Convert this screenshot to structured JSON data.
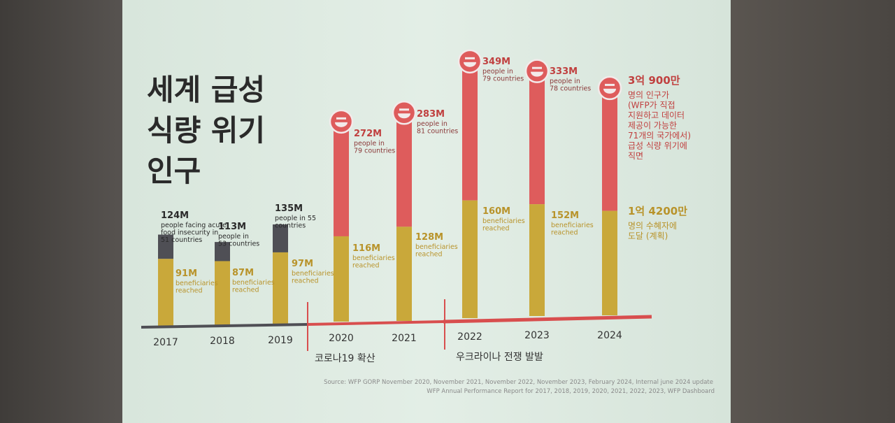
{
  "title_lines": [
    "세계 급성",
    "식량 위기",
    "인구"
  ],
  "colors": {
    "gray": "#4f4f55",
    "gold": "#c9a83a",
    "red": "#de5c5c",
    "line_gray": "#4f4f55",
    "line_red": "#d84e4e"
  },
  "chart_data": {
    "type": "bar",
    "categories": [
      "2017",
      "2018",
      "2019",
      "2020",
      "2021",
      "2022",
      "2023",
      "2024"
    ],
    "series": [
      {
        "name": "people facing acute food insecurity",
        "values": [
          124,
          113,
          135,
          272,
          283,
          349,
          333,
          309
        ]
      },
      {
        "name": "beneficiaries reached",
        "values": [
          91,
          87,
          97,
          116,
          128,
          160,
          152,
          142
        ]
      }
    ],
    "annotations": [
      {
        "year": "2017",
        "top_value": "124M",
        "top_text": [
          "people facing acute",
          "food insecurity in",
          "51 countries"
        ],
        "low_value": "91M",
        "low_text": [
          "beneficiaries",
          "reached"
        ]
      },
      {
        "year": "2018",
        "top_value": "113M",
        "top_text": [
          "people in",
          "53 countries"
        ],
        "low_value": "87M",
        "low_text": [
          "beneficiaries",
          "reached"
        ]
      },
      {
        "year": "2019",
        "top_value": "135M",
        "top_text": [
          "people in 55",
          "countries"
        ],
        "low_value": "97M",
        "low_text": [
          "beneficiaries",
          "reached"
        ]
      },
      {
        "year": "2020",
        "top_value": "272M",
        "top_text": [
          "people in",
          "79 countries"
        ],
        "low_value": "116M",
        "low_text": [
          "beneficiaries",
          "reached"
        ]
      },
      {
        "year": "2021",
        "top_value": "283M",
        "top_text": [
          "people in",
          "81 countries"
        ],
        "low_value": "128M",
        "low_text": [
          "beneficiaries",
          "reached"
        ]
      },
      {
        "year": "2022",
        "top_value": "349M",
        "top_text": [
          "people in",
          "79 countries"
        ],
        "low_value": "160M",
        "low_text": [
          "beneficiaries",
          "reached"
        ]
      },
      {
        "year": "2023",
        "top_value": "333M",
        "top_text": [
          "people in",
          "78 countries"
        ],
        "low_value": "152M",
        "low_text": [
          "beneficiaries",
          "reached"
        ]
      },
      {
        "year": "2024",
        "top_value": "3억 900만",
        "top_text": [
          "명의 인구가",
          "(WFP가 직접",
          "지원하고 데이터",
          "제공이 가능한",
          "71개의 국가에서)",
          "급성 식량 위기에",
          "직면"
        ],
        "low_value": "1억 4200만",
        "low_text": [
          "명의 수혜자에",
          "도달 (계획)"
        ]
      }
    ],
    "period_labels": [
      "코로나19 확산",
      "우크라이나 전쟁 발발"
    ],
    "source_lines": [
      "Source: WFP GORP November 2020, November 2021, November 2022, November 2023, February 2024, Internal june 2024 update",
      "WFP Annual Performance Report for 2017, 2018, 2019, 2020, 2021, 2022, 2023, WFP Dashboard"
    ]
  }
}
